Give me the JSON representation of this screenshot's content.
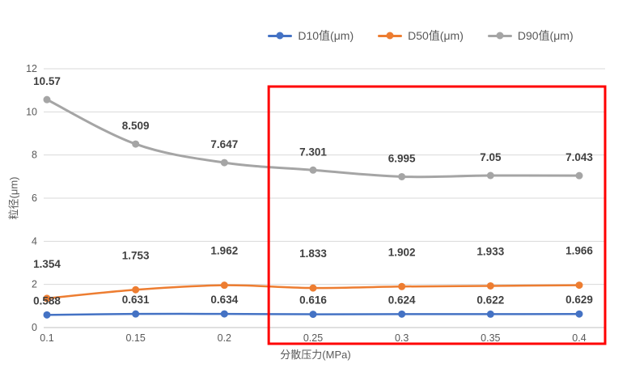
{
  "chart_data": {
    "type": "line",
    "title": "",
    "xlabel": "分散压力(MPa)",
    "ylabel": "粒径(μm)",
    "ylim": [
      0,
      12
    ],
    "ytick_step": 2,
    "grid": true,
    "legend_position": "top-center",
    "categories": [
      "0.1",
      "0.15",
      "0.2",
      "0.25",
      "0.3",
      "0.35",
      "0.4"
    ],
    "series": [
      {
        "name": "D10值(μm)",
        "color": "#4472C4",
        "values": [
          0.588,
          0.631,
          0.634,
          0.616,
          0.624,
          0.622,
          0.629
        ],
        "labels": [
          "0.588",
          "0.631",
          "0.634",
          "0.616",
          "0.624",
          "0.622",
          "0.629"
        ]
      },
      {
        "name": "D50值(μm)",
        "color": "#ED7D31",
        "values": [
          1.354,
          1.753,
          1.962,
          1.833,
          1.902,
          1.933,
          1.966
        ],
        "labels": [
          "1.354",
          "1.753",
          "1.962",
          "1.833",
          "1.902",
          "1.933",
          "1.966"
        ]
      },
      {
        "name": "D90值(μm)",
        "color": "#A5A5A5",
        "values": [
          10.57,
          8.509,
          7.647,
          7.301,
          6.995,
          7.05,
          7.043
        ],
        "labels": [
          "10.57",
          "8.509",
          "7.647",
          "7.301",
          "6.995",
          "7.05",
          "7.043"
        ]
      }
    ],
    "highlight": {
      "description": "red rectangle highlighting the 0.25–0.4 MPa region",
      "start_category": "0.25",
      "end_category": "0.4",
      "color": "#FF0000"
    },
    "colors": {
      "gridline": "#d9d9d9",
      "axis_line": "#bfbfbf",
      "tick_text": "#595959",
      "data_label_text": "#404040"
    }
  }
}
